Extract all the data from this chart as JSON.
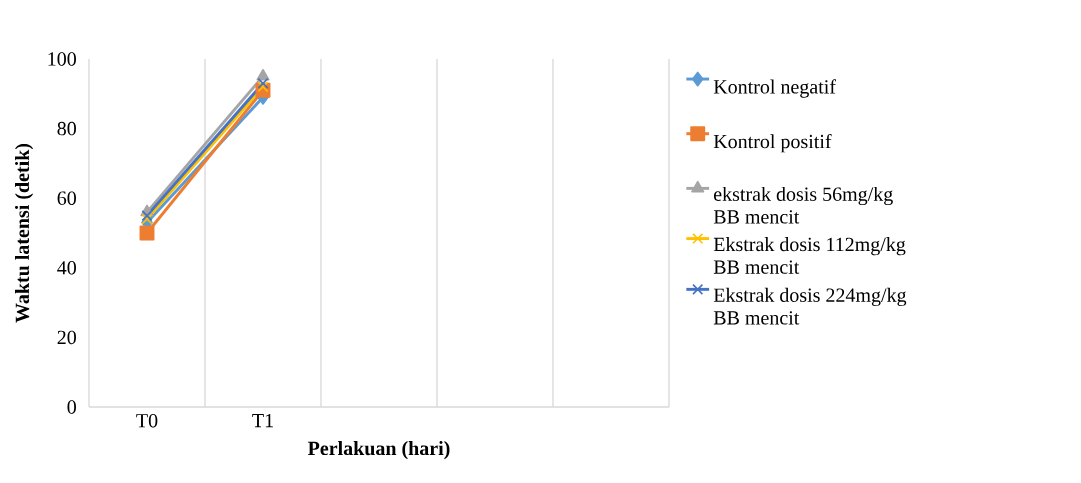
{
  "chart_data": {
    "type": "line",
    "xlabel": "Perlakuan (hari)",
    "ylabel": "Waktu latensi (detik)",
    "categories": [
      "T0",
      "T1",
      null,
      null,
      null
    ],
    "series": [
      {
        "name": "Kontrol negatif",
        "color": "#5b9bd5",
        "marker": "diamond",
        "values": [
          53,
          89,
          null,
          null,
          null
        ]
      },
      {
        "name": "Kontrol positif",
        "color": "#ed7d31",
        "marker": "square",
        "values": [
          50,
          91,
          null,
          null,
          null
        ]
      },
      {
        "name": "ekstrak dosis 56mg/kg BB mencit",
        "color": "#a5a5a5",
        "marker": "triangle",
        "values": [
          56,
          95,
          null,
          null,
          null
        ]
      },
      {
        "name": "Ekstrak dosis 112mg/kg BB mencit",
        "color": "#ffc000",
        "marker": "cross",
        "values": [
          54,
          92,
          null,
          null,
          null
        ]
      },
      {
        "name": "Ekstrak dosis 224mg/kg BB mencit",
        "color": "#4472c4",
        "marker": "cross",
        "values": [
          55,
          93,
          null,
          null,
          null
        ]
      }
    ],
    "ylim": [
      0,
      100
    ],
    "yticks": [
      0,
      20,
      40,
      60,
      80,
      100
    ],
    "grid": "x",
    "legend": "right",
    "line_style": "solid"
  }
}
